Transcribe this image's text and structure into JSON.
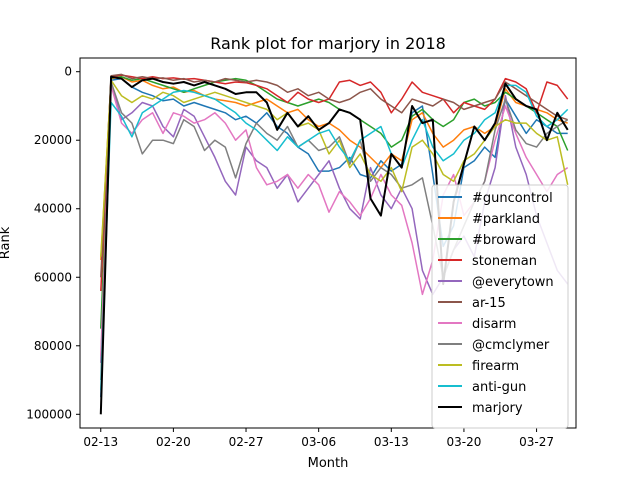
{
  "chart_data": {
    "type": "line",
    "title": "Rank plot for marjory in 2018",
    "xlabel": "Month",
    "ylabel": "Rank",
    "x_tick_labels": [
      "02-13",
      "02-20",
      "02-27",
      "03-06",
      "03-13",
      "03-20",
      "03-27"
    ],
    "x_tick_days": [
      0,
      7,
      14,
      21,
      28,
      35,
      42
    ],
    "y_ticks": [
      0,
      20000,
      40000,
      60000,
      80000,
      100000
    ],
    "y_tick_labels": [
      "0",
      "20000",
      "40000",
      "60000",
      "80000",
      "100000"
    ],
    "xlim": [
      -2,
      45.8
    ],
    "ylim": [
      104000,
      -4000
    ],
    "y_inverted": true,
    "grid": false,
    "legend_position": "lower right",
    "x_days": [
      0,
      1,
      2,
      3,
      4,
      5,
      6,
      7,
      8,
      9,
      10,
      11,
      12,
      13,
      14,
      15,
      16,
      17,
      18,
      19,
      20,
      21,
      22,
      23,
      24,
      25,
      26,
      27,
      28,
      29,
      30,
      31,
      32,
      33,
      34,
      35,
      36,
      37,
      38,
      39,
      40,
      41,
      42,
      43,
      44,
      45
    ],
    "series": [
      {
        "name": "#guncontrol",
        "color": "#1f77b4",
        "values": [
          95000,
          2500,
          2000,
          4500,
          6000,
          7000,
          8500,
          8000,
          10000,
          9000,
          10000,
          11000,
          12000,
          14000,
          13000,
          15000,
          12000,
          16000,
          18000,
          22000,
          24000,
          29000,
          29000,
          28000,
          25000,
          30000,
          31000,
          26000,
          29000,
          27000,
          12000,
          10000,
          30000,
          51000,
          45000,
          28000,
          26000,
          22000,
          25000,
          8000,
          13000,
          18000,
          14000,
          16000,
          18000,
          18000
        ]
      },
      {
        "name": "#parkland",
        "color": "#ff7f0e",
        "values": [
          55000,
          2000,
          1500,
          3000,
          2500,
          4000,
          5000,
          4500,
          6000,
          5500,
          7000,
          8000,
          8500,
          9000,
          10000,
          9000,
          8000,
          10000,
          12000,
          11000,
          14000,
          16000,
          15000,
          17000,
          20000,
          22000,
          25000,
          28000,
          24000,
          26000,
          14000,
          12000,
          18000,
          22000,
          20000,
          17000,
          16000,
          18000,
          16000,
          5000,
          9000,
          10000,
          11000,
          12000,
          14000,
          15000
        ]
      },
      {
        "name": "#broward",
        "color": "#2ca02c",
        "values": [
          75000,
          1800,
          1500,
          2500,
          2000,
          3000,
          4000,
          5000,
          6000,
          5000,
          4000,
          3000,
          2500,
          2000,
          2500,
          4000,
          6000,
          8000,
          9000,
          10000,
          9000,
          8000,
          9000,
          11000,
          12000,
          14000,
          16000,
          18000,
          22000,
          20000,
          13000,
          11000,
          14000,
          16000,
          14000,
          9000,
          8000,
          10000,
          9000,
          6000,
          8000,
          10000,
          12000,
          14000,
          16000,
          23000
        ]
      },
      {
        "name": "stoneman",
        "color": "#d62728",
        "values": [
          64000,
          1500,
          1000,
          1500,
          2000,
          1500,
          2000,
          1800,
          2200,
          2000,
          2500,
          3000,
          3500,
          3000,
          3200,
          4000,
          5000,
          7000,
          9000,
          6000,
          8000,
          9000,
          8000,
          3000,
          2500,
          4000,
          3000,
          6000,
          12000,
          8000,
          3000,
          6000,
          7000,
          8000,
          12000,
          9000,
          10000,
          11000,
          8000,
          2000,
          3000,
          5000,
          12000,
          3000,
          4000,
          8000
        ]
      },
      {
        "name": "@everytown",
        "color": "#9467bd",
        "values": [
          85000,
          3000,
          14000,
          12000,
          9000,
          10000,
          16000,
          19000,
          11000,
          13000,
          19000,
          25000,
          32000,
          36000,
          22000,
          26000,
          28000,
          34000,
          30000,
          38000,
          34000,
          30000,
          26000,
          34000,
          40000,
          43000,
          28000,
          36000,
          40000,
          34000,
          40000,
          58000,
          65000,
          60000,
          52000,
          48000,
          54000,
          38000,
          28000,
          7000,
          22000,
          30000,
          42000,
          50000,
          58000,
          62000
        ]
      },
      {
        "name": "ar-15",
        "color": "#8c564b",
        "values": [
          60000,
          1200,
          800,
          2000,
          1500,
          2000,
          1800,
          2500,
          2000,
          3000,
          2500,
          3000,
          2000,
          2500,
          3000,
          2500,
          3000,
          4000,
          6000,
          5000,
          7000,
          6000,
          8000,
          9000,
          8000,
          6000,
          5000,
          8000,
          10000,
          12000,
          8000,
          9000,
          10000,
          8000,
          9000,
          11000,
          10000,
          9000,
          8000,
          3000,
          5000,
          7000,
          9000,
          11000,
          13000,
          14000
        ]
      },
      {
        "name": "disarm",
        "color": "#e377c2",
        "values": [
          83000,
          4000,
          15000,
          18000,
          14000,
          12000,
          18000,
          12000,
          13000,
          15000,
          14000,
          12000,
          15000,
          20000,
          17000,
          28000,
          33000,
          32000,
          30000,
          34000,
          30000,
          33000,
          41000,
          35000,
          38000,
          42000,
          37000,
          30000,
          36000,
          39000,
          50000,
          65000,
          55000,
          36000,
          30000,
          42000,
          38000,
          32000,
          20000,
          10000,
          18000,
          25000,
          30000,
          35000,
          30000,
          28000
        ]
      },
      {
        "name": "@cmclymer",
        "color": "#7f7f7f",
        "values": [
          90000,
          3000,
          12000,
          15000,
          24000,
          20000,
          20000,
          21000,
          14000,
          16000,
          23000,
          20000,
          22000,
          31000,
          21000,
          15000,
          18000,
          20000,
          16000,
          22000,
          20000,
          23000,
          22000,
          19000,
          27000,
          20000,
          32000,
          28000,
          30000,
          34000,
          33000,
          31000,
          45000,
          60000,
          52000,
          45000,
          38000,
          32000,
          17000,
          8000,
          17000,
          21000,
          22000,
          18000,
          16000,
          14000
        ]
      },
      {
        "name": "firearm",
        "color": "#bcbd22",
        "values": [
          54000,
          2500,
          7000,
          9000,
          7000,
          8000,
          6000,
          7000,
          9000,
          8000,
          7000,
          6000,
          7000,
          8000,
          9000,
          10000,
          11000,
          14000,
          12000,
          16000,
          15000,
          17000,
          24000,
          20000,
          28000,
          24000,
          30000,
          32000,
          28000,
          35000,
          22000,
          20000,
          24000,
          30000,
          32000,
          26000,
          24000,
          20000,
          16000,
          14000,
          15000,
          15000,
          18000,
          20000,
          19000,
          33000
        ]
      },
      {
        "name": "anti-gun",
        "color": "#17becf",
        "values": [
          93000,
          9000,
          13000,
          19000,
          12000,
          10000,
          8000,
          6000,
          5500,
          6000,
          7000,
          8000,
          10000,
          12000,
          15000,
          17000,
          20000,
          23000,
          19000,
          22000,
          20000,
          18000,
          17000,
          22000,
          26000,
          20000,
          18000,
          16000,
          24000,
          28000,
          20000,
          14000,
          22000,
          26000,
          24000,
          20000,
          18000,
          14000,
          12000,
          4000,
          4000,
          6000,
          13000,
          16000,
          14000,
          11000
        ]
      },
      {
        "name": "marjory",
        "color": "#000000",
        "values": [
          100000,
          1500,
          2000,
          4500,
          2500,
          2000,
          3000,
          3500,
          3000,
          4000,
          3000,
          4000,
          5000,
          6500,
          6000,
          6000,
          9000,
          17000,
          12000,
          16000,
          13000,
          17000,
          15000,
          11000,
          12000,
          14000,
          37000,
          42000,
          24000,
          28000,
          10000,
          15000,
          14000,
          62000,
          38000,
          27000,
          16000,
          20000,
          15000,
          3500,
          8000,
          10000,
          11000,
          20000,
          12000,
          17000
        ]
      }
    ]
  }
}
